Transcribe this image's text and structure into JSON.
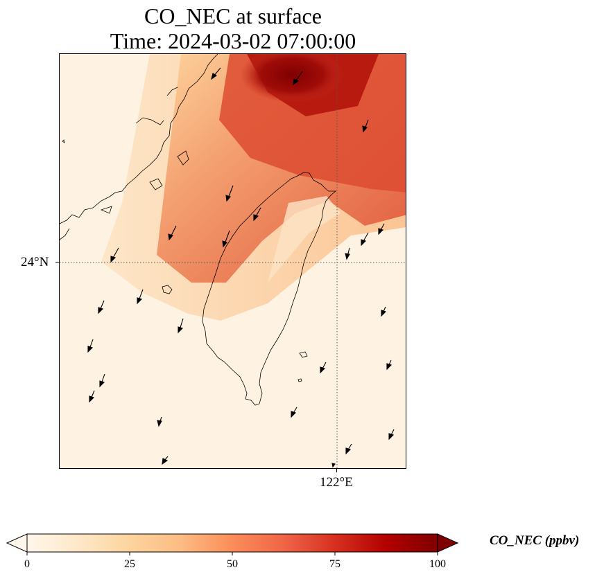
{
  "title": {
    "line1": "CO_NEC at surface",
    "line2": "Time: 2024-03-02 07:00:00"
  },
  "map": {
    "type": "filled-contour-map",
    "variable": "CO_NEC",
    "units": "ppbv",
    "gridlines": {
      "latitude": "24°N",
      "longitude": "122°E"
    },
    "features": [
      "coastline",
      "wind-vectors",
      "gridlines"
    ]
  },
  "colorbar": {
    "label": "CO_NEC (ppbv)",
    "ticks": [
      "0",
      "25",
      "50",
      "75",
      "100"
    ],
    "min": 0,
    "max": 100,
    "extend": "both",
    "colormap": "OrRd",
    "stops": [
      "#fff7ec",
      "#fee8c8",
      "#fdd49e",
      "#fdbb84",
      "#fc8d59",
      "#ef6548",
      "#d7301f",
      "#b30000",
      "#7f0000"
    ]
  }
}
